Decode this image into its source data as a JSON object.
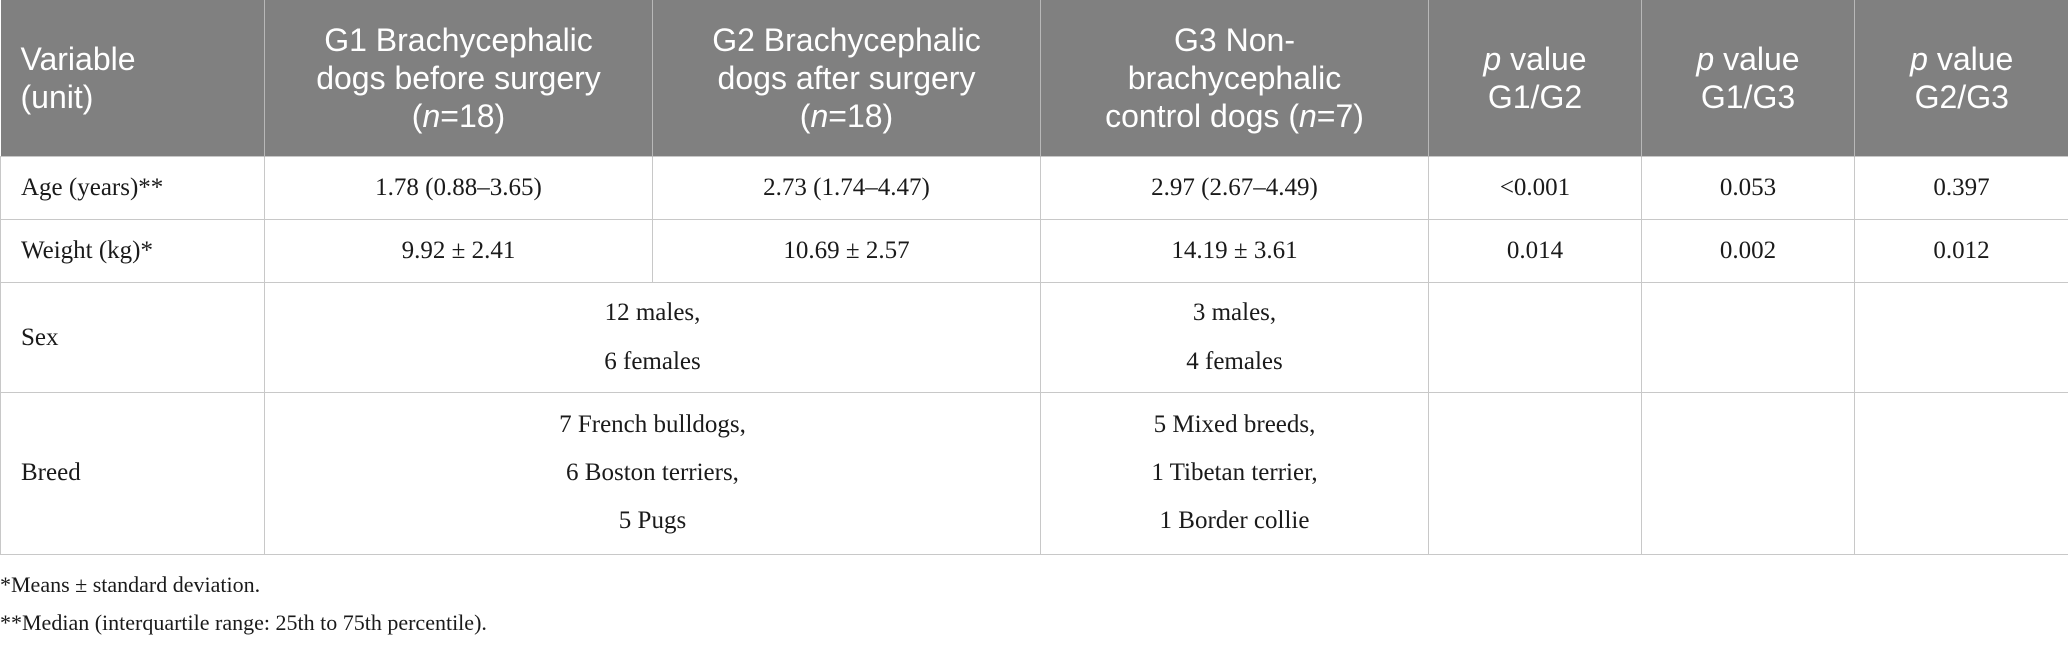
{
  "table": {
    "headers": {
      "variable": [
        "Variable",
        "(unit)"
      ],
      "g1": {
        "lines": [
          "G1 Brachycephalic",
          "dogs before surgery"
        ],
        "n_prefix": "(",
        "n_italic": "n",
        "n_suffix": "=18)"
      },
      "g2": {
        "lines": [
          "G2 Brachycephalic",
          "dogs after surgery"
        ],
        "n_prefix": "(",
        "n_italic": "n",
        "n_suffix": "=18)"
      },
      "g3": {
        "lines": [
          "G3 Non-",
          "brachycephalic"
        ],
        "n_prefix": "control dogs (",
        "n_italic": "n",
        "n_suffix": "=7)"
      },
      "p12": {
        "italic": "p",
        "rest": " value",
        "sub": "G1/G2"
      },
      "p13": {
        "italic": "p",
        "rest": " value",
        "sub": "G1/G3"
      },
      "p23": {
        "italic": "p",
        "rest": " value",
        "sub": "G2/G3"
      }
    },
    "age": {
      "label": "Age (years)**",
      "g1": "1.78 (0.88–3.65)",
      "g2": "2.73 (1.74–4.47)",
      "g3": "2.97 (2.67–4.49)",
      "p12": "<0.001",
      "p13": "0.053",
      "p23": "0.397"
    },
    "weight": {
      "label": "Weight (kg)*",
      "g1": "9.92 ± 2.41",
      "g2": "10.69 ± 2.57",
      "g3": "14.19 ± 3.61",
      "p12": "0.014",
      "p13": "0.002",
      "p23": "0.012"
    },
    "sex": {
      "label": "Sex",
      "brachy": [
        "12 males,",
        "6 females"
      ],
      "control": [
        "3 males,",
        "4 females"
      ]
    },
    "breed": {
      "label": "Breed",
      "brachy": [
        "7 French bulldogs,",
        "6 Boston terriers,",
        "5 Pugs"
      ],
      "control": [
        "5 Mixed breeds,",
        "1 Tibetan terrier,",
        "1 Border collie"
      ]
    }
  },
  "footnotes": [
    "*Means ± standard deviation.",
    "**Median (interquartile range: 25th to 75th percentile)."
  ]
}
